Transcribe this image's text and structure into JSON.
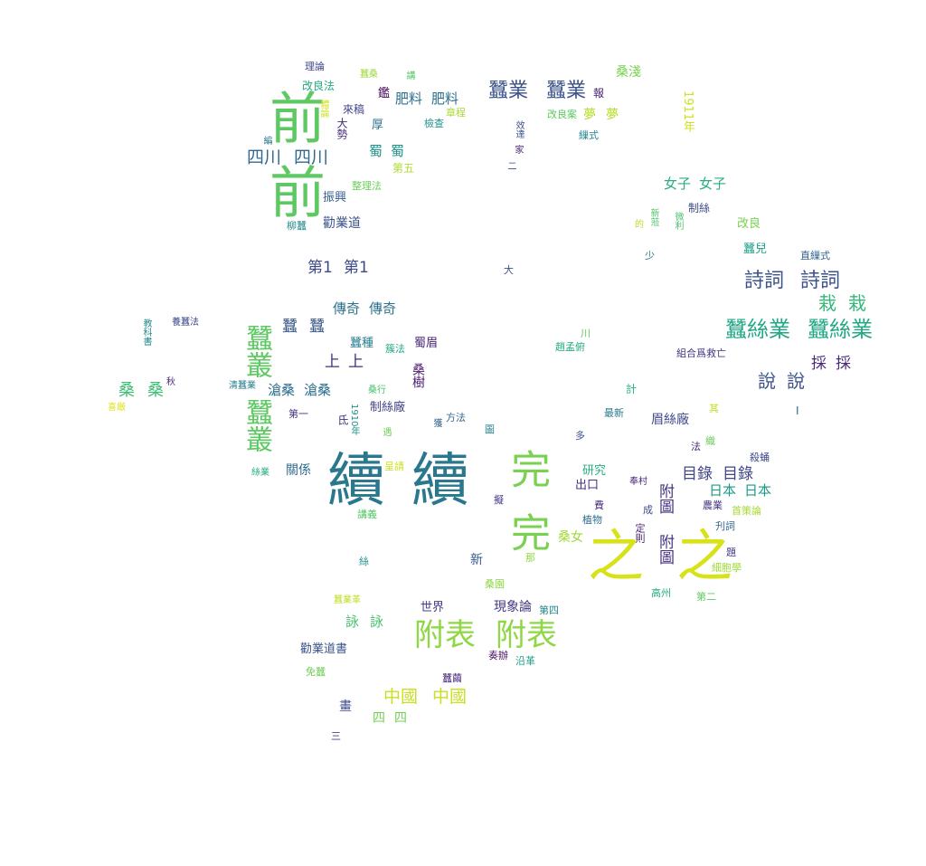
{
  "palette": {
    "purple": "#440154",
    "indigo": "#3b528b",
    "blue": "#31688e",
    "teal": "#21918c",
    "green": "#35b779",
    "lime": "#8fd744",
    "yellow": "#d8e219"
  },
  "words": [
    {
      "text": "續",
      "color": "#2a788e"
    },
    {
      "text": "續",
      "color": "#2a788e"
    },
    {
      "text": "前",
      "color": "#5ec962"
    },
    {
      "text": "前",
      "color": "#5ec962"
    },
    {
      "text": "之",
      "color": "#d8e219"
    },
    {
      "text": "之",
      "color": "#d8e219"
    },
    {
      "text": "完",
      "color": "#7ad151"
    },
    {
      "text": "完",
      "color": "#7ad151"
    },
    {
      "text": "附表",
      "color": "#8fd744"
    },
    {
      "text": "附表",
      "color": "#8fd744"
    },
    {
      "text": "蠶叢",
      "color": "#5ec962"
    },
    {
      "text": "蠶叢",
      "color": "#5ec962"
    },
    {
      "text": "蠶絲業",
      "color": "#22a884"
    },
    {
      "text": "蠶絲業",
      "color": "#22a884"
    },
    {
      "text": "詩詞",
      "color": "#3b528b"
    },
    {
      "text": "詩詞",
      "color": "#3b528b"
    },
    {
      "text": "蠶業",
      "color": "#3b528b"
    },
    {
      "text": "蠶業",
      "color": "#3b528b"
    },
    {
      "text": "中國",
      "color": "#c8e020"
    },
    {
      "text": "中國",
      "color": "#c8e020"
    },
    {
      "text": "四川",
      "color": "#31688e"
    },
    {
      "text": "四川",
      "color": "#31688e"
    },
    {
      "text": "目錄",
      "color": "#404688"
    },
    {
      "text": "目錄",
      "color": "#404688"
    },
    {
      "text": "附圖",
      "color": "#46337e"
    },
    {
      "text": "附圖",
      "color": "#46337e"
    },
    {
      "text": "日本",
      "color": "#1f9a8a"
    },
    {
      "text": "日本",
      "color": "#1f9a8a"
    },
    {
      "text": "說",
      "color": "#3b528b"
    },
    {
      "text": "說",
      "color": "#3b528b"
    },
    {
      "text": "栽",
      "color": "#35b779"
    },
    {
      "text": "栽",
      "color": "#35b779"
    },
    {
      "text": "採",
      "color": "#482878"
    },
    {
      "text": "採",
      "color": "#482878"
    },
    {
      "text": "第1",
      "color": "#3e4a89"
    },
    {
      "text": "第1",
      "color": "#3e4a89"
    },
    {
      "text": "傳奇",
      "color": "#2c728e"
    },
    {
      "text": "傳奇",
      "color": "#2c728e"
    },
    {
      "text": "蠶",
      "color": "#39568c"
    },
    {
      "text": "蠶",
      "color": "#39568c"
    },
    {
      "text": "上",
      "color": "#472c7a"
    },
    {
      "text": "上",
      "color": "#472c7a"
    },
    {
      "text": "滄桑",
      "color": "#2e6f8e"
    },
    {
      "text": "滄桑",
      "color": "#2e6f8e"
    },
    {
      "text": "桑",
      "color": "#3dbc74"
    },
    {
      "text": "桑",
      "color": "#3dbc74"
    },
    {
      "text": "女子",
      "color": "#29af7f"
    },
    {
      "text": "女子",
      "color": "#29af7f"
    },
    {
      "text": "肥料",
      "color": "#2d708e"
    },
    {
      "text": "肥料",
      "color": "#2d708e"
    },
    {
      "text": "蜀",
      "color": "#20928c"
    },
    {
      "text": "蜀",
      "color": "#20928c"
    },
    {
      "text": "詠",
      "color": "#4ac16d"
    },
    {
      "text": "詠",
      "color": "#4ac16d"
    },
    {
      "text": "四",
      "color": "#73d055"
    },
    {
      "text": "四",
      "color": "#73d055"
    },
    {
      "text": "夢",
      "color": "#b5de2b"
    },
    {
      "text": "夢",
      "color": "#b5de2b"
    },
    {
      "text": "勸業道",
      "color": "#3b528b"
    },
    {
      "text": "振興",
      "color": "#355f8d"
    },
    {
      "text": "桑女",
      "color": "#a0da39"
    },
    {
      "text": "眉絲廠",
      "color": "#3f4788"
    },
    {
      "text": "關係",
      "color": "#2f6b8e"
    },
    {
      "text": "研究",
      "color": "#29af7f"
    },
    {
      "text": "出口",
      "color": "#46327e"
    },
    {
      "text": "世界",
      "color": "#433e85"
    },
    {
      "text": "現象論",
      "color": "#453781"
    },
    {
      "text": "勸業道書",
      "color": "#3a548c"
    },
    {
      "text": "新",
      "color": "#39568c"
    },
    {
      "text": "畫",
      "color": "#3e4989"
    },
    {
      "text": "蠶種",
      "color": "#287c8e"
    },
    {
      "text": "制絲廠",
      "color": "#424086"
    },
    {
      "text": "蜀眉",
      "color": "#482475"
    },
    {
      "text": "桑樹",
      "color": "#481b6d"
    },
    {
      "text": "桑淺",
      "color": "#7ad151"
    },
    {
      "text": "改良法",
      "color": "#23a983"
    },
    {
      "text": "來稿",
      "color": "#414487"
    },
    {
      "text": "1911年",
      "color": "#d0e11c"
    },
    {
      "text": "第五",
      "color": "#b0dd2f"
    },
    {
      "text": "整理法",
      "color": "#6ccd5a"
    },
    {
      "text": "理論",
      "color": "#3f4889"
    },
    {
      "text": "蠶桑",
      "color": "#9bd93c"
    },
    {
      "text": "講",
      "color": "#56c667"
    },
    {
      "text": "鑑",
      "color": "#440154"
    },
    {
      "text": "報",
      "color": "#482475"
    },
    {
      "text": "章程",
      "color": "#a8db34"
    },
    {
      "text": "改良案",
      "color": "#5ec962"
    },
    {
      "text": "檢查",
      "color": "#21918c"
    },
    {
      "text": "厚",
      "color": "#2d708e"
    },
    {
      "text": "繅式",
      "color": "#25848e"
    },
    {
      "text": "效達",
      "color": "#3b528b"
    },
    {
      "text": "家",
      "color": "#482071"
    },
    {
      "text": "二",
      "color": "#3e4989"
    },
    {
      "text": "大勢",
      "color": "#472d7b"
    },
    {
      "text": "編",
      "color": "#2a768e"
    },
    {
      "text": "體論",
      "color": "#d2e21b"
    },
    {
      "text": "柳蠶",
      "color": "#238a8d"
    },
    {
      "text": "改良",
      "color": "#7ad151"
    },
    {
      "text": "新蒞",
      "color": "#52c569"
    },
    {
      "text": "制絲",
      "color": "#3e4a89"
    },
    {
      "text": "微利",
      "color": "#4ac16d"
    },
    {
      "text": "的",
      "color": "#b8de29"
    },
    {
      "text": "少",
      "color": "#2c728e"
    },
    {
      "text": "蠶兒",
      "color": "#1fa088"
    },
    {
      "text": "直繅式",
      "color": "#33638d"
    },
    {
      "text": "大",
      "color": "#3b528b"
    },
    {
      "text": "趙孟俯",
      "color": "#23a983"
    },
    {
      "text": "川",
      "color": "#5ec962"
    },
    {
      "text": "組合爲救亡",
      "color": "#453781"
    },
    {
      "text": "計",
      "color": "#2db27d"
    },
    {
      "text": "最新",
      "color": "#2a788e"
    },
    {
      "text": "其",
      "color": "#c0df25"
    },
    {
      "text": "I",
      "color": "#31688e"
    },
    {
      "text": "法",
      "color": "#482878"
    },
    {
      "text": "織",
      "color": "#6ccd5a"
    },
    {
      "text": "殺蛹",
      "color": "#3e4a89"
    },
    {
      "text": "多",
      "color": "#3b528b"
    },
    {
      "text": "圖",
      "color": "#26828e"
    },
    {
      "text": "方法",
      "color": "#31688e"
    },
    {
      "text": "獲",
      "color": "#33638d"
    },
    {
      "text": "遇",
      "color": "#6ece58"
    },
    {
      "text": "1910年",
      "color": "#21918c"
    },
    {
      "text": "氐",
      "color": "#46337e"
    },
    {
      "text": "第一",
      "color": "#46327e"
    },
    {
      "text": "桑行",
      "color": "#4ac16d"
    },
    {
      "text": "清蠶業",
      "color": "#277f8e"
    },
    {
      "text": "養蠶法",
      "color": "#3e4989"
    },
    {
      "text": "教科書",
      "color": "#238a8d"
    },
    {
      "text": "秋",
      "color": "#472a7a"
    },
    {
      "text": "喜厳",
      "color": "#dde318"
    },
    {
      "text": "簇法",
      "color": "#22a884"
    },
    {
      "text": "絲業",
      "color": "#25ac82"
    },
    {
      "text": "呈請",
      "color": "#cae11f"
    },
    {
      "text": "擬",
      "color": "#443983"
    },
    {
      "text": "講義",
      "color": "#56c667"
    },
    {
      "text": "絲",
      "color": "#20928c"
    },
    {
      "text": "桑園",
      "color": "#8bd646"
    },
    {
      "text": "那",
      "color": "#90d743"
    },
    {
      "text": "第四",
      "color": "#23888e"
    },
    {
      "text": "奏辦",
      "color": "#471063"
    },
    {
      "text": "沿革",
      "color": "#1f9e89"
    },
    {
      "text": "蠶業革",
      "color": "#bddf26"
    },
    {
      "text": "免蠶",
      "color": "#6ece58"
    },
    {
      "text": "蠶繭",
      "color": "#482576"
    },
    {
      "text": "三",
      "color": "#404688"
    },
    {
      "text": "奉村",
      "color": "#482878"
    },
    {
      "text": "費",
      "color": "#472a7a"
    },
    {
      "text": "成",
      "color": "#3e4a89"
    },
    {
      "text": "植物",
      "color": "#2e6e8e"
    },
    {
      "text": "定則",
      "color": "#481f70"
    },
    {
      "text": "農業",
      "color": "#45337f"
    },
    {
      "text": "首策論",
      "color": "#a8db34"
    },
    {
      "text": "刋詞",
      "color": "#33638d"
    },
    {
      "text": "題",
      "color": "#424086"
    },
    {
      "text": "細胞學",
      "color": "#9fda3a"
    },
    {
      "text": "高州",
      "color": "#26ad81"
    },
    {
      "text": "第二",
      "color": "#5ec962"
    }
  ]
}
